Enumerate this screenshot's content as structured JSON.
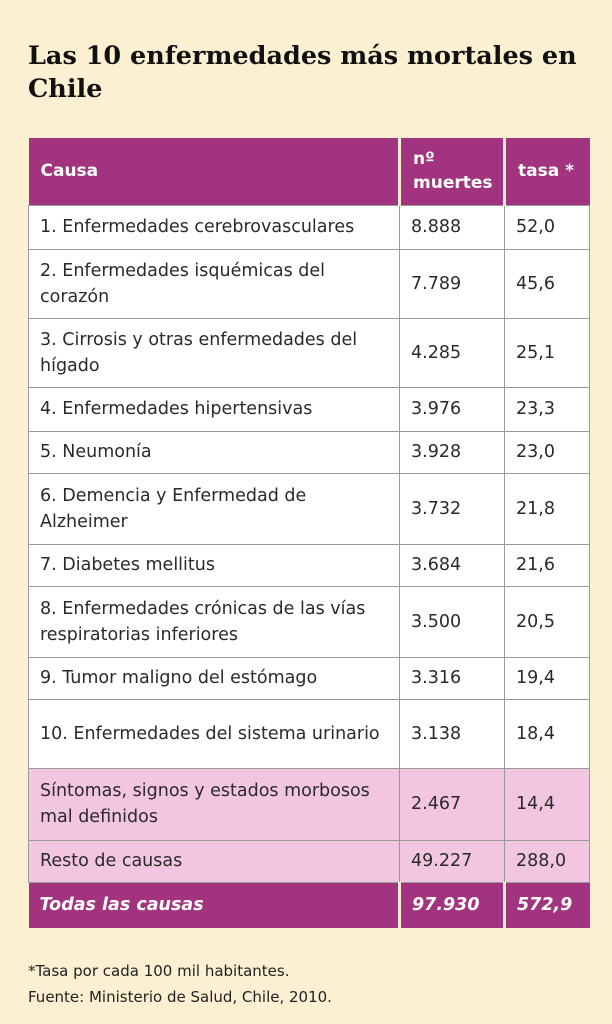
{
  "title": "Las 10 enfermedades más mortales en Chile",
  "table": {
    "headers": [
      "Causa",
      "nº muertes",
      "tasa *"
    ],
    "rows": [
      {
        "causa": "1. Enfermedades cerebrovasculares",
        "muertes": "8.888",
        "tasa": "52,0"
      },
      {
        "causa": "2. Enfermedades isquémicas del corazón",
        "muertes": "7.789",
        "tasa": "45,6"
      },
      {
        "causa": "3. Cirrosis y otras enfermedades del hígado",
        "muertes": "4.285",
        "tasa": "25,1"
      },
      {
        "causa": "4. Enfermedades hipertensivas",
        "muertes": "3.976",
        "tasa": "23,3"
      },
      {
        "causa": "5. Neumonía",
        "muertes": "3.928",
        "tasa": "23,0"
      },
      {
        "causa": "6. Demencia y Enfermedad de Alzheimer",
        "muertes": "3.732",
        "tasa": "21,8"
      },
      {
        "causa": "7. Diabetes mellitus",
        "muertes": "3.684",
        "tasa": "21,6"
      },
      {
        "causa": "8. Enfermedades crónicas de las vías respiratorias inferiores",
        "muertes": "3.500",
        "tasa": "20,5"
      },
      {
        "causa": "9. Tumor maligno del estómago",
        "muertes": "3.316",
        "tasa": "19,4"
      },
      {
        "causa": "10. Enfermedades del sistema urinario",
        "muertes": "3.138",
        "tasa": "18,4"
      },
      {
        "causa": "Síntomas, signos y estados morbosos mal definidos",
        "muertes": "2.467",
        "tasa": "14,4"
      },
      {
        "causa": "Resto de causas",
        "muertes": "49.227",
        "tasa": "288,0"
      }
    ],
    "total": {
      "causa": "Todas las causas",
      "muertes": "97.930",
      "tasa": "572,9"
    }
  },
  "notes": {
    "footnote": "*Tasa por cada 100 mil habitantes.",
    "source": "Fuente: Ministerio de Salud, Chile, 2010."
  },
  "colors": {
    "header": "#a2347f",
    "pink_row": "#f2c6e0",
    "background": "#fbf0d1"
  }
}
